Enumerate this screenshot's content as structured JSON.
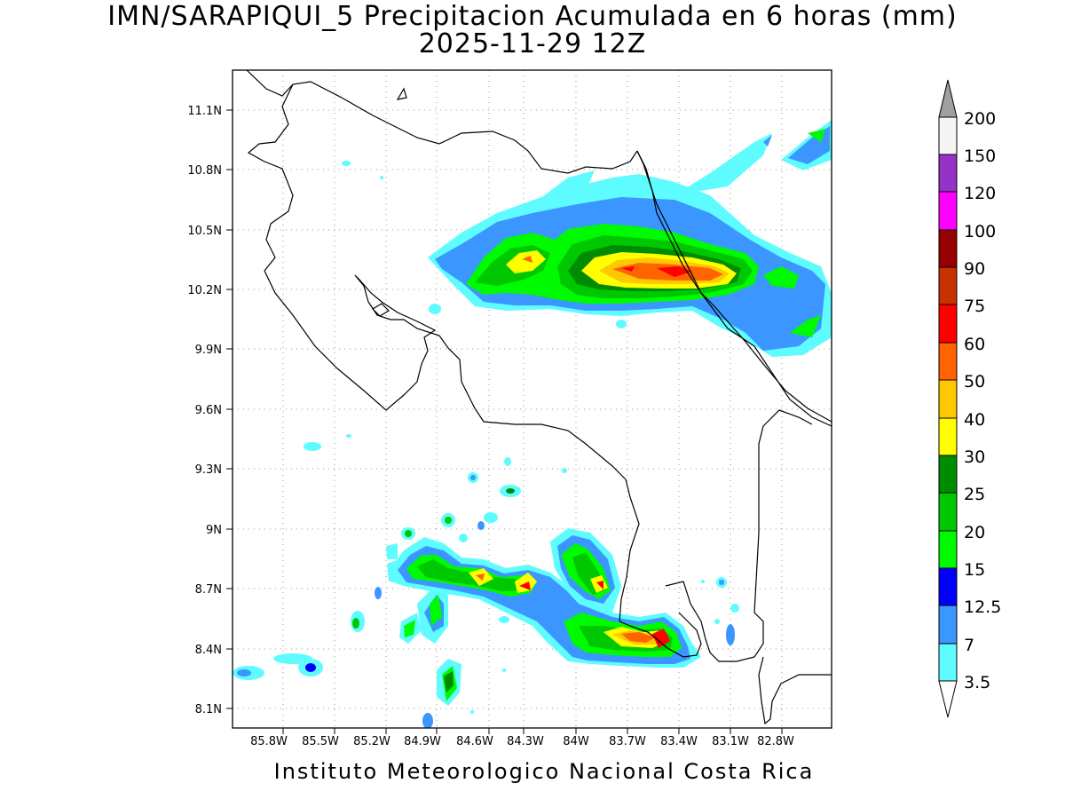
{
  "header": {
    "title": "IMN/SARAPIQUI_5 Precipitacion Acumulada en 6 horas (mm)",
    "date": "2025-11-29 12Z"
  },
  "footer": {
    "institution": "Instituto Meteorologico Nacional Costa Rica"
  },
  "map": {
    "lat_ticks": [
      "11.1N",
      "10.8N",
      "10.5N",
      "10.2N",
      "9.9N",
      "9.6N",
      "9.3N",
      "9N",
      "8.7N",
      "8.4N",
      "8.1N"
    ],
    "lon_ticks": [
      "85.8W",
      "85.5W",
      "85.2W",
      "84.9W",
      "84.6W",
      "84.3W",
      "84W",
      "83.7W",
      "83.4W",
      "83.1W",
      "82.8W"
    ],
    "lon_range": [
      -86.05,
      -82.6
    ],
    "lat_range": [
      8.0,
      11.3
    ],
    "gridlines": "dotted"
  },
  "colorbar": {
    "levels": [
      "200",
      "150",
      "120",
      "100",
      "90",
      "75",
      "60",
      "50",
      "40",
      "30",
      "25",
      "20",
      "15",
      "12.5",
      "7",
      "3.5"
    ],
    "colors": {
      "3.5-7": "#5efcff",
      "7-12.5": "#3c96ff",
      "12.5-15": "#0000fa",
      "15-20": "#00fa00",
      "20-25": "#00c800",
      "25-30": "#008c00",
      "30-40": "#ffff00",
      "40-50": "#ffc800",
      "50-60": "#ff6400",
      "60-75": "#ff0000",
      "75-90": "#c83200",
      "90-100": "#960000",
      "100-120": "#ff00ff",
      "120-150": "#9632c8",
      "150-200": "#f5f5f5",
      "above-200": "#a0a0a0"
    }
  }
}
